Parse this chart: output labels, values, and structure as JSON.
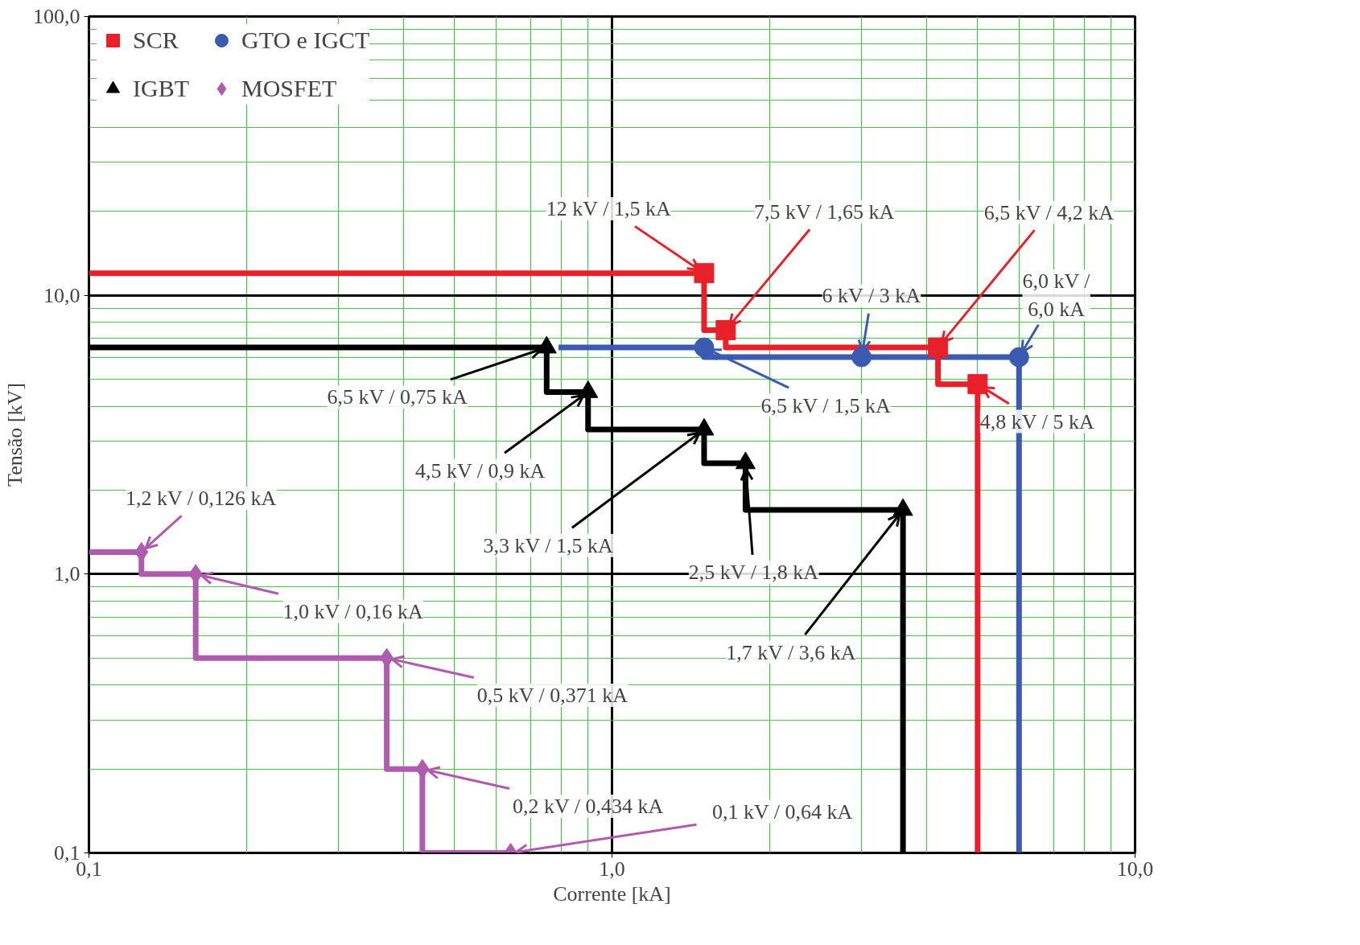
{
  "chart_data": {
    "type": "line",
    "xlabel": "Corrente [kA]",
    "ylabel": "Tensão [kV]",
    "log": "xy",
    "grid": true,
    "legend": "top left",
    "line_style": "solid",
    "xlim": [
      0.1,
      10
    ],
    "ylim": [
      0.1,
      100
    ],
    "xticks": [
      {
        "value": 0.1,
        "label": "0,1"
      },
      {
        "value": 0.2,
        "label": null
      },
      {
        "value": 0.3,
        "label": null
      },
      {
        "value": 0.4,
        "label": null
      },
      {
        "value": 0.5,
        "label": null
      },
      {
        "value": 0.6,
        "label": null
      },
      {
        "value": 0.7,
        "label": null
      },
      {
        "value": 0.8,
        "label": null
      },
      {
        "value": 0.9,
        "label": null
      },
      {
        "value": 1,
        "label": "1,0"
      },
      {
        "value": 2,
        "label": null
      },
      {
        "value": 3,
        "label": null
      },
      {
        "value": 4,
        "label": null
      },
      {
        "value": 5,
        "label": null
      },
      {
        "value": 6,
        "label": null
      },
      {
        "value": 7,
        "label": null
      },
      {
        "value": 8,
        "label": null
      },
      {
        "value": 9,
        "label": null
      },
      {
        "value": 10,
        "label": "10,0"
      }
    ],
    "yticks": [
      {
        "value": 0.1,
        "label": "0,1"
      },
      {
        "value": 0.2,
        "label": null
      },
      {
        "value": 0.3,
        "label": null
      },
      {
        "value": 0.4,
        "label": null
      },
      {
        "value": 0.5,
        "label": null
      },
      {
        "value": 0.6,
        "label": null
      },
      {
        "value": 0.7,
        "label": null
      },
      {
        "value": 0.8,
        "label": null
      },
      {
        "value": 0.9,
        "label": null
      },
      {
        "value": 1,
        "label": "1,0"
      },
      {
        "value": 2,
        "label": null
      },
      {
        "value": 3,
        "label": null
      },
      {
        "value": 4,
        "label": null
      },
      {
        "value": 5,
        "label": null
      },
      {
        "value": 6,
        "label": null
      },
      {
        "value": 7,
        "label": null
      },
      {
        "value": 8,
        "label": null
      },
      {
        "value": 9,
        "label": null
      },
      {
        "value": 10,
        "label": "10,0"
      },
      {
        "value": 20,
        "label": null
      },
      {
        "value": 30,
        "label": null
      },
      {
        "value": 40,
        "label": null
      },
      {
        "value": 50,
        "label": null
      },
      {
        "value": 60,
        "label": null
      },
      {
        "value": 70,
        "label": null
      },
      {
        "value": 80,
        "label": null
      },
      {
        "value": 90,
        "label": null
      },
      {
        "value": 100,
        "label": "100,0"
      }
    ],
    "series": [
      {
        "color": "#3a5bb0",
        "x": [
          0.79,
          1.5,
          1.5,
          6,
          6
        ],
        "values": [
          6.5,
          6.5,
          6,
          6,
          0.1
        ]
      },
      {
        "color": "#e8202a",
        "x": [
          0.1,
          1.5,
          1.5,
          1.65,
          1.65,
          4.2,
          4.2,
          5,
          5
        ],
        "values": [
          12,
          12,
          7.5,
          7.5,
          6.5,
          6.5,
          4.8,
          4.8,
          0.1
        ]
      },
      {
        "color": "#000000",
        "x": [
          0.1,
          0.75,
          0.75,
          0.9,
          0.9,
          1.5,
          1.5,
          1.8,
          1.8,
          3.6,
          3.6
        ],
        "values": [
          6.5,
          6.5,
          4.5,
          4.5,
          3.3,
          3.3,
          2.5,
          2.5,
          1.7,
          1.7,
          0.1
        ]
      },
      {
        "color": "#b05ab0",
        "x": [
          0.1,
          0.126,
          0.126,
          0.16,
          0.16,
          0.371,
          0.371,
          0.434,
          0.434,
          0.64
        ],
        "values": [
          1.2,
          1.2,
          1,
          1,
          0.5,
          0.5,
          0.2,
          0.2,
          0.1,
          0.1
        ]
      },
      {
        "type": "scatter",
        "name": "GTO e IGCT",
        "color": "#3a5bb0",
        "marker": "circle",
        "x": [
          1.5,
          3,
          6
        ],
        "values": [
          6.5,
          6,
          6
        ]
      },
      {
        "type": "scatter",
        "name": "SCR",
        "color": "#e8202a",
        "marker": "square",
        "x": [
          1.5,
          1.65,
          4.2,
          5
        ],
        "values": [
          12,
          7.5,
          6.5,
          4.8
        ]
      },
      {
        "type": "scatter",
        "name": "IGBT",
        "color": "#000000",
        "marker": "triangle",
        "x": [
          0.75,
          0.9,
          1.5,
          1.8,
          3.6
        ],
        "values": [
          6.5,
          4.5,
          3.3,
          2.5,
          1.7
        ]
      },
      {
        "type": "scatter",
        "name": "MOSFET",
        "color": "#b05ab0",
        "marker": "diamond",
        "x": [
          0.126,
          0.16,
          0.371,
          0.434,
          0.64
        ],
        "values": [
          1.2,
          1,
          0.5,
          0.2,
          0.1
        ]
      }
    ],
    "annotations": [
      {
        "text": "12 kV / 1,5 kA",
        "x": 1.5,
        "y": 12
      },
      {
        "text": "7,5 kV / 1,65 kA",
        "x": 1.65,
        "y": 7.5
      },
      {
        "text": "6,5 kV / 4,2 kA",
        "x": 4.2,
        "y": 6.5
      },
      {
        "text": "4,8 kV / 5 kA",
        "x": 5,
        "y": 4.8
      },
      {
        "text": "6 kV / 3 kA",
        "x": 3,
        "y": 6
      },
      {
        "text": "6,0 kV / 6,0 kA",
        "x": 6,
        "y": 6
      },
      {
        "text": "6,5 kV / 1,5 kA",
        "x": 1.5,
        "y": 6.5
      },
      {
        "text": "6,5 kV / 0,75 kA",
        "x": 0.75,
        "y": 6.5
      },
      {
        "text": "4,5 kV / 0,9 kA",
        "x": 0.9,
        "y": 4.5
      },
      {
        "text": "3,3 kV / 1,5 kA",
        "x": 1.5,
        "y": 3.3
      },
      {
        "text": "2,5 kV / 1,8 kA",
        "x": 1.8,
        "y": 2.5
      },
      {
        "text": "1,7 kV / 3,6 kA",
        "x": 3.6,
        "y": 1.7
      },
      {
        "text": "1,2 kV / 0,126 kA",
        "x": 0.126,
        "y": 1.2
      },
      {
        "text": "1,0 kV / 0,16 kA",
        "x": 0.16,
        "y": 1.0
      },
      {
        "text": "0,5 kV / 0,371 kA",
        "x": 0.371,
        "y": 0.5
      },
      {
        "text": "0,2 kV / 0,434 kA",
        "x": 0.434,
        "y": 0.2
      },
      {
        "text": "0,1 kV / 0,64 kA",
        "x": 0.64,
        "y": 0.1
      }
    ]
  }
}
